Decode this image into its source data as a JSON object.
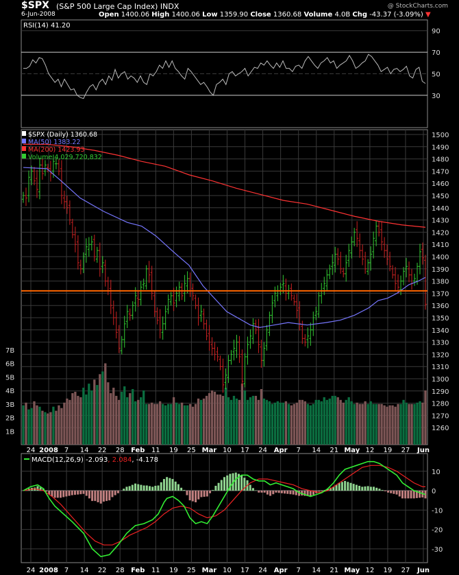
{
  "header": {
    "symbol": "$SPX",
    "name": "(S&P 500 Large Cap Index) INDX",
    "date": "6-Jun-2008",
    "open_label": "Open",
    "open": "1400.06",
    "high_label": "High",
    "high": "1400.06",
    "low_label": "Low",
    "low": "1359.90",
    "close_label": "Close",
    "close": "1360.68",
    "volume_label": "Volume",
    "volume": "4.0B",
    "chg_label": "Chg",
    "chg": "-43.37 (-3.09%)",
    "down_arrow": "▼",
    "credit": "@ StockCharts.com"
  },
  "colors": {
    "background": "#000000",
    "panel_border": "#8a8a8a",
    "grid": "#3a3a3a",
    "up": "#33cc33",
    "down": "#cc2222",
    "ma50": "#7777ff",
    "ma200": "#ff3333",
    "rsi": "#bbbbbb",
    "macd": "#33ee33",
    "signal": "#ee2222",
    "hist_pos": "#8fd48f",
    "hist_neg": "#c08080",
    "vol_up": "#0b6e40",
    "vol_down": "#7d5656",
    "hline": "#ff6600"
  },
  "x_labels": [
    "24",
    "2008",
    "7",
    "14",
    "22",
    "28",
    "Feb",
    "11",
    "19",
    "25",
    "Mar",
    "10",
    "17",
    "24",
    "Apr",
    "7",
    "14",
    "21",
    "May",
    "12",
    "19",
    "27",
    "Jun"
  ],
  "chart_data": [
    {
      "type": "line",
      "title": "RSI(14) 41.20",
      "ylim": [
        0,
        100
      ],
      "ticks": [
        30,
        50,
        70,
        90
      ],
      "overbought": 70,
      "oversold": 30,
      "values": [
        55,
        55,
        57,
        63,
        60,
        65,
        64,
        58,
        50,
        46,
        42,
        45,
        38,
        45,
        40,
        35,
        36,
        30,
        28,
        27,
        33,
        38,
        40,
        35,
        42,
        45,
        40,
        48,
        44,
        54,
        46,
        50,
        52,
        45,
        48,
        46,
        42,
        48,
        42,
        40,
        50,
        48,
        52,
        58,
        55,
        62,
        56,
        62,
        55,
        52,
        48,
        45,
        55,
        52,
        48,
        44,
        40,
        42,
        38,
        33,
        30,
        40,
        42,
        45,
        40,
        50,
        52,
        48,
        50,
        52,
        55,
        48,
        52,
        56,
        55,
        60,
        58,
        62,
        58,
        55,
        60,
        56,
        62,
        55,
        55,
        52,
        57,
        58,
        55,
        62,
        66,
        62,
        58,
        55,
        60,
        62,
        65,
        60,
        62,
        55,
        58,
        60,
        62,
        67,
        62,
        55,
        57,
        60,
        62,
        68,
        66,
        62,
        58,
        52,
        54,
        56,
        50,
        54,
        55,
        52,
        54,
        57,
        48,
        46,
        54,
        56,
        43,
        41
      ]
    },
    {
      "type": "ohlc",
      "title": "$SPX (Daily) 1360.68",
      "ylim": [
        1250,
        1500
      ],
      "ticks": [
        1260,
        1270,
        1280,
        1290,
        1300,
        1310,
        1320,
        1330,
        1340,
        1350,
        1360,
        1370,
        1380,
        1390,
        1400,
        1410,
        1420,
        1430,
        1440,
        1450,
        1460,
        1470,
        1480,
        1490,
        1500
      ],
      "horizontal_line": 1372,
      "legend": [
        "$SPX (Daily) 1360.68",
        "MA(50) 1383.22",
        "MA(200) 1423.93",
        "Volume 4,029,720,832"
      ],
      "close": [
        1450,
        1448,
        1465,
        1470,
        1462,
        1455,
        1475,
        1468,
        1475,
        1472,
        1468,
        1478,
        1476,
        1470,
        1450,
        1445,
        1440,
        1430,
        1418,
        1410,
        1395,
        1390,
        1400,
        1408,
        1410,
        1412,
        1400,
        1405,
        1390,
        1395,
        1380,
        1372,
        1360,
        1350,
        1338,
        1325,
        1332,
        1345,
        1355,
        1352,
        1360,
        1368,
        1365,
        1375,
        1378,
        1390,
        1385,
        1370,
        1355,
        1348,
        1340,
        1345,
        1355,
        1365,
        1368,
        1362,
        1370,
        1375,
        1368,
        1378,
        1382,
        1372,
        1368,
        1360,
        1350,
        1355,
        1345,
        1335,
        1330,
        1325,
        1320,
        1318,
        1310,
        1295,
        1303,
        1315,
        1320,
        1325,
        1330,
        1318,
        1298,
        1318,
        1328,
        1335,
        1345,
        1340,
        1328,
        1315,
        1325,
        1340,
        1352,
        1362,
        1370,
        1372,
        1375,
        1378,
        1370,
        1372,
        1368,
        1363,
        1356,
        1345,
        1333,
        1330,
        1335,
        1340,
        1350,
        1355,
        1368,
        1372,
        1378,
        1385,
        1390,
        1395,
        1402,
        1398,
        1390,
        1386,
        1395,
        1405,
        1412,
        1420,
        1415,
        1405,
        1398,
        1390,
        1395,
        1402,
        1415,
        1425,
        1420,
        1412,
        1405,
        1398,
        1392,
        1385,
        1378,
        1375,
        1380,
        1388,
        1392,
        1385,
        1378,
        1382,
        1392,
        1404,
        1399,
        1361
      ]
    },
    {
      "type": "line",
      "name": "MA(50)",
      "points": [
        [
          0,
          1473
        ],
        [
          10,
          1472
        ],
        [
          16,
          1462
        ],
        [
          24,
          1448
        ],
        [
          34,
          1437
        ],
        [
          44,
          1428
        ],
        [
          50,
          1425
        ],
        [
          56,
          1417
        ],
        [
          64,
          1403
        ],
        [
          70,
          1393
        ],
        [
          76,
          1376
        ],
        [
          86,
          1355
        ],
        [
          96,
          1344
        ],
        [
          100,
          1342
        ],
        [
          106,
          1344
        ],
        [
          112,
          1346
        ],
        [
          120,
          1344
        ],
        [
          128,
          1346
        ],
        [
          134,
          1348
        ],
        [
          140,
          1352
        ],
        [
          146,
          1358
        ],
        [
          150,
          1364
        ],
        [
          154,
          1366
        ],
        [
          158,
          1370
        ],
        [
          163,
          1377
        ],
        [
          167,
          1380
        ],
        [
          170,
          1383
        ]
      ]
    },
    {
      "type": "line",
      "name": "MA(200)",
      "points": [
        [
          0,
          1492
        ],
        [
          10,
          1492
        ],
        [
          20,
          1490
        ],
        [
          30,
          1487
        ],
        [
          40,
          1483
        ],
        [
          50,
          1478
        ],
        [
          60,
          1474
        ],
        [
          70,
          1467
        ],
        [
          80,
          1462
        ],
        [
          90,
          1456
        ],
        [
          100,
          1451
        ],
        [
          110,
          1446
        ],
        [
          120,
          1443
        ],
        [
          130,
          1438
        ],
        [
          140,
          1433
        ],
        [
          150,
          1429
        ],
        [
          160,
          1426
        ],
        [
          170,
          1424
        ]
      ]
    },
    {
      "type": "bar",
      "title": "Volume 4,029,720,832",
      "ylim": [
        0,
        8
      ],
      "ticks_label": [
        "1B",
        "2B",
        "3B",
        "4B",
        "5B",
        "6B",
        "7B"
      ],
      "values": [
        2.9,
        3.1,
        2.6,
        2.7,
        3.2,
        2.9,
        2.8,
        2.5,
        2.4,
        2.3,
        2.4,
        2.8,
        2.5,
        2.9,
        2.7,
        3.1,
        3.4,
        3.3,
        3.8,
        3.9,
        3.6,
        3.5,
        4.2,
        3.7,
        4.5,
        4.0,
        4.8,
        4.4,
        5.2,
        5.4,
        6.0,
        4.6,
        3.8,
        4.2,
        3.6,
        3.3,
        3.9,
        4.3,
        3.5,
        3.8,
        4.1,
        3.2,
        3.3,
        3.5,
        4.0,
        3.0,
        3.0,
        3.1,
        3.0,
        3.0,
        3.2,
        3.0,
        2.9,
        3.0,
        3.0,
        3.5,
        3.1,
        3.0,
        3.1,
        2.9,
        2.9,
        3.0,
        2.8,
        3.0,
        3.4,
        3.3,
        3.4,
        3.6,
        3.8,
        4.0,
        3.9,
        3.7,
        3.7,
        3.6,
        4.2,
        3.5,
        3.3,
        3.6,
        3.4,
        3.3,
        4.5,
        4.0,
        3.3,
        3.5,
        3.6,
        3.6,
        3.3,
        4.1,
        3.4,
        3.3,
        3.2,
        3.0,
        3.1,
        3.2,
        3.1,
        3.1,
        3.2,
        3.0,
        2.9,
        3.0,
        3.1,
        3.3,
        3.3,
        3.2,
        3.0,
        2.9,
        3.0,
        3.3,
        3.3,
        3.2,
        3.5,
        3.3,
        3.4,
        3.6,
        3.6,
        3.5,
        3.3,
        3.1,
        3.3,
        3.5,
        3.2,
        3.0,
        3.1,
        3.0,
        3.0,
        3.2,
        3.0,
        3.2,
        3.0,
        3.0,
        3.0,
        3.0,
        2.9,
        2.8,
        2.9,
        2.9,
        2.8,
        3.0,
        3.0,
        3.3,
        3.1,
        3.0,
        3.0,
        3.0,
        3.1,
        3.2,
        3.1,
        4.0
      ]
    },
    {
      "type": "line",
      "title": "MACD(12,26,9) -2.093, 2.084, -4.178",
      "ylim": [
        -35,
        17
      ],
      "ticks": [
        -30,
        -20,
        -10,
        0,
        10
      ],
      "legend": [
        "MACD(12,26,9) -2.093",
        "2.084",
        "-4.178"
      ],
      "macd": [
        [
          0,
          0
        ],
        [
          5,
          2
        ],
        [
          10,
          3
        ],
        [
          14,
          1
        ],
        [
          18,
          -4
        ],
        [
          22,
          -8
        ],
        [
          28,
          -12
        ],
        [
          34,
          -16
        ],
        [
          42,
          -22
        ],
        [
          48,
          -30
        ],
        [
          54,
          -34
        ],
        [
          60,
          -33
        ],
        [
          66,
          -28
        ],
        [
          72,
          -22
        ],
        [
          78,
          -18
        ],
        [
          84,
          -17
        ],
        [
          90,
          -15
        ],
        [
          94,
          -12
        ],
        [
          98,
          -6
        ],
        [
          100,
          -4
        ],
        [
          104,
          -3
        ],
        [
          108,
          -5
        ],
        [
          112,
          -8
        ],
        [
          116,
          -14
        ],
        [
          120,
          -17
        ],
        [
          124,
          -16
        ],
        [
          128,
          -17
        ],
        [
          132,
          -13
        ],
        [
          136,
          -8
        ],
        [
          140,
          -3
        ],
        [
          144,
          2
        ],
        [
          148,
          6
        ],
        [
          152,
          8
        ],
        [
          156,
          8
        ],
        [
          160,
          6
        ],
        [
          164,
          5
        ],
        [
          168,
          5
        ],
        [
          172,
          3
        ],
        [
          176,
          4
        ],
        [
          180,
          3
        ],
        [
          184,
          2
        ],
        [
          188,
          1
        ],
        [
          192,
          -1
        ],
        [
          196,
          -2
        ],
        [
          200,
          -3
        ],
        [
          204,
          -2
        ],
        [
          208,
          -1
        ],
        [
          212,
          1
        ],
        [
          216,
          4
        ],
        [
          220,
          8
        ],
        [
          224,
          11
        ],
        [
          228,
          12
        ],
        [
          232,
          13
        ],
        [
          236,
          14
        ],
        [
          240,
          15
        ],
        [
          244,
          15
        ],
        [
          248,
          14
        ],
        [
          252,
          12
        ],
        [
          256,
          10
        ],
        [
          260,
          8
        ],
        [
          264,
          4
        ],
        [
          268,
          2
        ],
        [
          272,
          0
        ],
        [
          276,
          -1
        ],
        [
          280,
          -2
        ]
      ],
      "signal": [
        [
          0,
          0
        ],
        [
          8,
          1
        ],
        [
          14,
          0
        ],
        [
          20,
          -3
        ],
        [
          26,
          -7
        ],
        [
          32,
          -12
        ],
        [
          38,
          -17
        ],
        [
          44,
          -22
        ],
        [
          50,
          -26
        ],
        [
          56,
          -28
        ],
        [
          62,
          -28
        ],
        [
          68,
          -26
        ],
        [
          74,
          -23
        ],
        [
          80,
          -21
        ],
        [
          86,
          -19
        ],
        [
          92,
          -16
        ],
        [
          98,
          -12
        ],
        [
          104,
          -9
        ],
        [
          110,
          -8
        ],
        [
          116,
          -9
        ],
        [
          122,
          -12
        ],
        [
          128,
          -14
        ],
        [
          134,
          -13
        ],
        [
          140,
          -10
        ],
        [
          146,
          -5
        ],
        [
          152,
          0
        ],
        [
          158,
          4
        ],
        [
          164,
          6
        ],
        [
          170,
          6
        ],
        [
          176,
          5
        ],
        [
          182,
          4
        ],
        [
          188,
          3
        ],
        [
          194,
          1
        ],
        [
          200,
          0
        ],
        [
          206,
          -1
        ],
        [
          212,
          0
        ],
        [
          218,
          3
        ],
        [
          224,
          6
        ],
        [
          230,
          9
        ],
        [
          236,
          12
        ],
        [
          242,
          13
        ],
        [
          248,
          13
        ],
        [
          254,
          12
        ],
        [
          260,
          10
        ],
        [
          266,
          7
        ],
        [
          272,
          4
        ],
        [
          278,
          2
        ],
        [
          280,
          2
        ]
      ]
    }
  ]
}
